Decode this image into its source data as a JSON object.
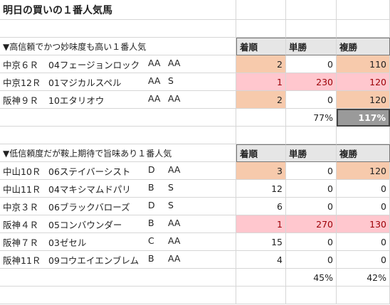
{
  "title": "明日の買いの１番人気馬",
  "headers": {
    "rank": "着順",
    "win": "単勝",
    "place": "複勝"
  },
  "section1": {
    "label": "▼高信頼でかつ妙味度も高い１番人気",
    "rows": [
      {
        "race": "中京６Ｒ",
        "horse": "04フェージョンロック",
        "g1": "AA",
        "g2": "AA",
        "rank": "2",
        "win": "0",
        "place": "110",
        "style": "peach"
      },
      {
        "race": "中京12Ｒ",
        "horse": "01マジカルスペル",
        "g1": "AA",
        "g2": "S",
        "rank": "1",
        "win": "230",
        "place": "120",
        "style": "pink"
      },
      {
        "race": "阪神９Ｒ",
        "horse": "10エタリオウ",
        "g1": "AA",
        "g2": "AA",
        "rank": "2",
        "win": "0",
        "place": "120",
        "style": "peach"
      }
    ],
    "win_rate": "77%",
    "place_rate": "117%"
  },
  "section2": {
    "label": "▼低信頼度だが鞍上期待で旨味あり１番人気",
    "rows": [
      {
        "race": "中山10Ｒ",
        "horse": "06ステイバーシスト",
        "g1": "D",
        "g2": "AA",
        "rank": "3",
        "win": "0",
        "place": "120",
        "style": "peach"
      },
      {
        "race": "中山11Ｒ",
        "horse": "04マキシマムドパリ",
        "g1": "B",
        "g2": "S",
        "rank": "12",
        "win": "0",
        "place": "0",
        "style": ""
      },
      {
        "race": "中京３Ｒ",
        "horse": "06ブラックバローズ",
        "g1": "D",
        "g2": "S",
        "rank": "6",
        "win": "0",
        "place": "0",
        "style": ""
      },
      {
        "race": "阪神４Ｒ",
        "horse": "05コンバウンダー",
        "g1": "B",
        "g2": "AA",
        "rank": "1",
        "win": "270",
        "place": "130",
        "style": "pink"
      },
      {
        "race": "阪神７Ｒ",
        "horse": "03ゼセル",
        "g1": "C",
        "g2": "AA",
        "rank": "15",
        "win": "0",
        "place": "0",
        "style": ""
      },
      {
        "race": "阪神11Ｒ",
        "horse": "09コウエイエンブレム",
        "g1": "B",
        "g2": "AA",
        "rank": "4",
        "win": "0",
        "place": "0",
        "style": ""
      }
    ],
    "win_rate": "45%",
    "place_rate": "42%"
  }
}
